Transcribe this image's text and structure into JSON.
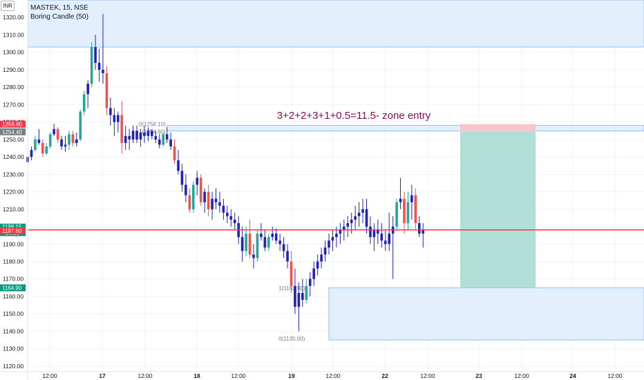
{
  "header": {
    "symbol": "MASTEK, 15, NSE",
    "indicator": "Boring Candle (50)",
    "currency": "INR"
  },
  "chart_data": {
    "type": "candlestick",
    "title": "MASTEK, 15, NSE",
    "ylim": [
      1116,
      1330
    ],
    "y_ticks": [
      1120,
      1130,
      1140,
      1150,
      1160,
      1170,
      1180,
      1190,
      1200,
      1210,
      1220,
      1230,
      1240,
      1250,
      1260,
      1270,
      1280,
      1290,
      1300,
      1310,
      1320
    ],
    "x_ticks": [
      "12:00",
      "17",
      "12:00",
      "18",
      "12:00",
      "19",
      "12:00",
      "22",
      "12:00",
      "23",
      "12:00",
      "24",
      "12:00"
    ],
    "price_labels": [
      {
        "text": "1258.80",
        "value": 1258.8,
        "color": "#f23645"
      },
      {
        "text": "1254.40",
        "value": 1254.4,
        "color": "#787b86"
      },
      {
        "text": "1198.15",
        "text2": "10:36",
        "value": 1198.15,
        "color": "#089981"
      },
      {
        "text": "1197.60",
        "value": 1197.6,
        "color": "#f23645"
      },
      {
        "text": "1164.90",
        "value": 1164.9,
        "color": "#089981"
      }
    ],
    "zones": [
      {
        "from_bar": 0,
        "to_bar": 999,
        "low": 1303,
        "high": 1330,
        "fill": "#e3effd",
        "stroke": "#90bff9"
      },
      {
        "from_bar": 37,
        "to_bar": 999,
        "low": 1254.9,
        "high": 1258.1,
        "fill": "#e3effd",
        "stroke": "#90bff9"
      },
      {
        "from_bar": 80,
        "to_bar": 999,
        "low": 1135,
        "high": 1164.9,
        "fill": "#e3effd",
        "stroke": "#90bff9"
      }
    ],
    "fib_labels": [
      {
        "text": "0(1258.10)",
        "value": 1258.1,
        "bar": 37
      },
      {
        "text": "1(1254.90)",
        "value": 1254.9,
        "bar": 37
      },
      {
        "text": "1(1163.90)",
        "value": 1163.9,
        "bar": 74
      },
      {
        "text": "0(1135.00)",
        "value": 1135.0,
        "bar": 74
      }
    ],
    "annotation": "3+2+2+3+1+0.5=11.5-  zone entry",
    "position": {
      "entry": 1254.4,
      "stop": 1258.8,
      "target": 1164.9,
      "profit_color": "#b2dfd5",
      "loss_color": "#f5c6cc"
    },
    "current_price": 1198.15,
    "up_color": "#26a69a",
    "down_color": "#ef5350",
    "boring_color": "#2222bb",
    "candles": [
      [
        1237,
        1242,
        1232,
        1240
      ],
      [
        1240,
        1246,
        1238,
        1244
      ],
      [
        1244,
        1252,
        1243,
        1250
      ],
      [
        1250,
        1256,
        1247,
        1248
      ],
      [
        1248,
        1250,
        1240,
        1242
      ],
      [
        1242,
        1248,
        1241,
        1246
      ],
      [
        1246,
        1254,
        1245,
        1253
      ],
      [
        1253,
        1259,
        1252,
        1256
      ],
      [
        1256,
        1257,
        1248,
        1250
      ],
      [
        1250,
        1252,
        1244,
        1246
      ],
      [
        1246,
        1252,
        1243,
        1247
      ],
      [
        1247,
        1255,
        1244,
        1253
      ],
      [
        1253,
        1255,
        1246,
        1248
      ],
      [
        1248,
        1254,
        1246,
        1250
      ],
      [
        1250,
        1267,
        1249,
        1266
      ],
      [
        1266,
        1278,
        1264,
        1276
      ],
      [
        1276,
        1284,
        1268,
        1282
      ],
      [
        1282,
        1306,
        1280,
        1303
      ],
      [
        1303,
        1310,
        1290,
        1294
      ],
      [
        1294,
        1302,
        1283,
        1290
      ],
      [
        1290,
        1322,
        1282,
        1288
      ],
      [
        1288,
        1292,
        1264,
        1268
      ],
      [
        1268,
        1274,
        1258,
        1264
      ],
      [
        1264,
        1268,
        1252,
        1260
      ],
      [
        1260,
        1266,
        1254,
        1264
      ],
      [
        1264,
        1272,
        1242,
        1248
      ],
      [
        1248,
        1258,
        1244,
        1252
      ],
      [
        1252,
        1256,
        1244,
        1250
      ],
      [
        1250,
        1258,
        1248,
        1255
      ],
      [
        1255,
        1258,
        1248,
        1250
      ],
      [
        1250,
        1256,
        1246,
        1254
      ],
      [
        1254,
        1258,
        1248,
        1252
      ],
      [
        1252,
        1257,
        1249,
        1255
      ],
      [
        1255,
        1256,
        1250,
        1252
      ],
      [
        1252,
        1255,
        1248,
        1250
      ],
      [
        1250,
        1253,
        1245,
        1247
      ],
      [
        1247,
        1254,
        1246,
        1253
      ],
      [
        1253,
        1257,
        1248,
        1250
      ],
      [
        1250,
        1254,
        1244,
        1246
      ],
      [
        1246,
        1250,
        1236,
        1238
      ],
      [
        1238,
        1244,
        1230,
        1232
      ],
      [
        1232,
        1236,
        1220,
        1224
      ],
      [
        1224,
        1230,
        1214,
        1218
      ],
      [
        1218,
        1222,
        1208,
        1210
      ],
      [
        1210,
        1226,
        1208,
        1224
      ],
      [
        1224,
        1232,
        1218,
        1228
      ],
      [
        1228,
        1230,
        1212,
        1214
      ],
      [
        1214,
        1222,
        1208,
        1220
      ],
      [
        1220,
        1224,
        1206,
        1210
      ],
      [
        1210,
        1220,
        1204,
        1216
      ],
      [
        1216,
        1222,
        1210,
        1214
      ],
      [
        1214,
        1220,
        1208,
        1212
      ],
      [
        1212,
        1216,
        1204,
        1208
      ],
      [
        1208,
        1212,
        1202,
        1206
      ],
      [
        1206,
        1210,
        1200,
        1204
      ],
      [
        1204,
        1208,
        1198,
        1202
      ],
      [
        1202,
        1206,
        1190,
        1194
      ],
      [
        1194,
        1200,
        1180,
        1186
      ],
      [
        1186,
        1200,
        1183,
        1196
      ],
      [
        1196,
        1204,
        1182,
        1184
      ],
      [
        1184,
        1190,
        1176,
        1182
      ],
      [
        1182,
        1198,
        1180,
        1196
      ],
      [
        1196,
        1202,
        1192,
        1194
      ],
      [
        1194,
        1198,
        1186,
        1188
      ],
      [
        1188,
        1196,
        1186,
        1194
      ],
      [
        1194,
        1200,
        1192,
        1196
      ],
      [
        1196,
        1199,
        1190,
        1192
      ],
      [
        1192,
        1196,
        1186,
        1190
      ],
      [
        1190,
        1194,
        1182,
        1186
      ],
      [
        1186,
        1190,
        1176,
        1180
      ],
      [
        1180,
        1186,
        1162,
        1166
      ],
      [
        1166,
        1176,
        1150,
        1154
      ],
      [
        1154,
        1168,
        1140,
        1162
      ],
      [
        1162,
        1170,
        1154,
        1158
      ],
      [
        1158,
        1170,
        1156,
        1166
      ],
      [
        1166,
        1174,
        1160,
        1170
      ],
      [
        1170,
        1180,
        1166,
        1176
      ],
      [
        1176,
        1184,
        1172,
        1180
      ],
      [
        1180,
        1188,
        1176,
        1184
      ],
      [
        1184,
        1192,
        1180,
        1188
      ],
      [
        1188,
        1196,
        1184,
        1192
      ],
      [
        1192,
        1198,
        1186,
        1194
      ],
      [
        1194,
        1200,
        1188,
        1196
      ],
      [
        1196,
        1202,
        1190,
        1198
      ],
      [
        1198,
        1204,
        1192,
        1200
      ],
      [
        1200,
        1206,
        1194,
        1202
      ],
      [
        1202,
        1208,
        1196,
        1204
      ],
      [
        1204,
        1212,
        1198,
        1206
      ],
      [
        1206,
        1214,
        1200,
        1208
      ],
      [
        1208,
        1216,
        1202,
        1210
      ],
      [
        1210,
        1216,
        1196,
        1200
      ],
      [
        1200,
        1206,
        1190,
        1194
      ],
      [
        1194,
        1202,
        1186,
        1198
      ],
      [
        1198,
        1204,
        1190,
        1196
      ],
      [
        1196,
        1202,
        1188,
        1192
      ],
      [
        1192,
        1198,
        1186,
        1190
      ],
      [
        1190,
        1208,
        1186,
        1196
      ],
      [
        1196,
        1206,
        1170,
        1200
      ],
      [
        1200,
        1216,
        1198,
        1214
      ],
      [
        1214,
        1228,
        1210,
        1216
      ],
      [
        1216,
        1220,
        1196,
        1202
      ],
      [
        1202,
        1220,
        1198,
        1214
      ],
      [
        1214,
        1224,
        1204,
        1218
      ],
      [
        1218,
        1222,
        1198,
        1202
      ],
      [
        1202,
        1206,
        1194,
        1196
      ],
      [
        1196,
        1202,
        1188,
        1198
      ]
    ]
  }
}
